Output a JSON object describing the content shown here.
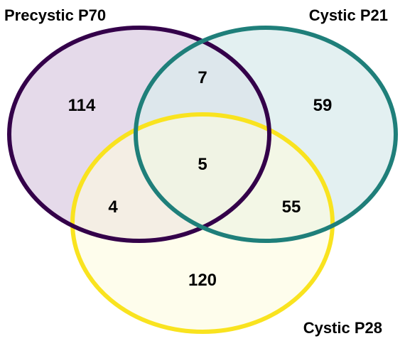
{
  "diagram": {
    "type": "venn-3",
    "sets": [
      {
        "key": "a",
        "label": "Precystic P70",
        "stroke": "#34004a",
        "fill": "#e0d4e6"
      },
      {
        "key": "b",
        "label": "Cystic P21",
        "stroke": "#1f7f7a",
        "fill": "#d9ebec"
      },
      {
        "key": "c",
        "label": "Cystic P28",
        "stroke": "#f9e31f",
        "fill": "#fdfbdf"
      }
    ],
    "regions": {
      "a_only": "114",
      "b_only": "59",
      "c_only": "120",
      "ab": "7",
      "ac": "4",
      "bc": "55",
      "abc": "5"
    }
  }
}
